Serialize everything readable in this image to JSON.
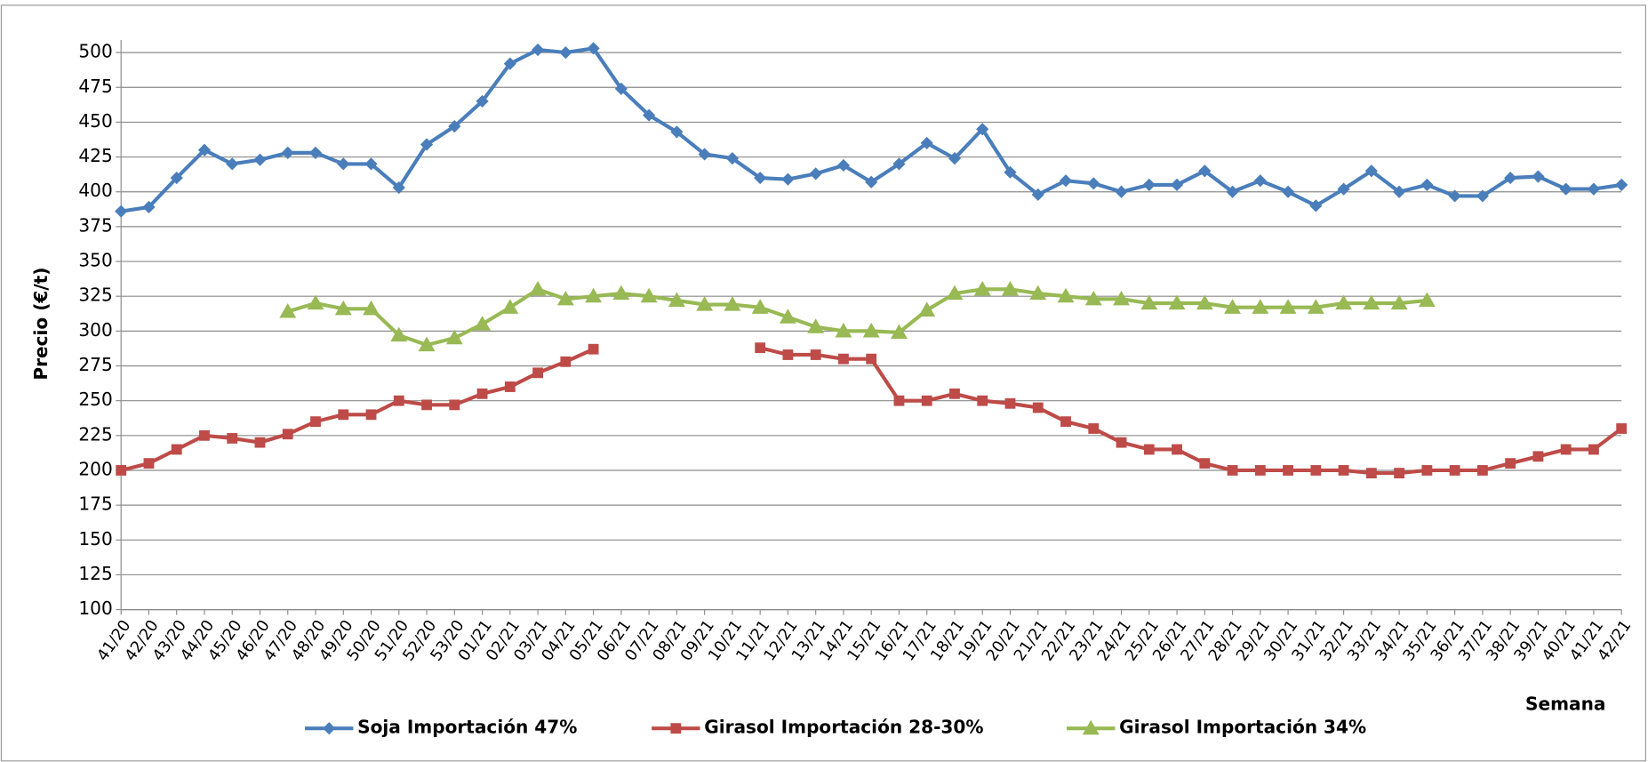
{
  "chart_data": {
    "type": "line",
    "y_label": "Precio (€/t)",
    "x_label": "Semana",
    "categories": [
      "41/20",
      "42/20",
      "43/20",
      "44/20",
      "45/20",
      "46/20",
      "47/20",
      "48/20",
      "49/20",
      "50/20",
      "51/20",
      "52/20",
      "53/20",
      "01/21",
      "02/21",
      "03/21",
      "04/21",
      "05/21",
      "06/21",
      "07/21",
      "08/21",
      "09/21",
      "10/21",
      "11/21",
      "12/21",
      "13/21",
      "14/21",
      "15/21",
      "16/21",
      "17/21",
      "18/21",
      "19/21",
      "20/21",
      "21/21",
      "22/21",
      "23/21",
      "24/21",
      "25/21",
      "26/21",
      "27/21",
      "28/21",
      "29/21",
      "30/21",
      "31/21",
      "32/21",
      "33/21",
      "34/21",
      "35/21",
      "36/21",
      "37/21",
      "38/21",
      "39/21",
      "40/21",
      "41/21",
      "42/21"
    ],
    "series": [
      {
        "name": "Soja Importación 47%",
        "color": "#4a7ebb",
        "marker": "diamond",
        "values": [
          386,
          389,
          410,
          430,
          420,
          423,
          428,
          428,
          420,
          420,
          403,
          434,
          447,
          465,
          492,
          502,
          500,
          503,
          474,
          455,
          443,
          427,
          424,
          410,
          409,
          413,
          419,
          407,
          420,
          435,
          424,
          445,
          414,
          398,
          408,
          406,
          400,
          405,
          405,
          415,
          400,
          408,
          400,
          390,
          402,
          415,
          400,
          405,
          397,
          397,
          410,
          411,
          402,
          402,
          405
        ]
      },
      {
        "name": "Girasol Importación 28-30%",
        "color": "#be4b48",
        "marker": "square",
        "values": [
          200,
          205,
          215,
          225,
          223,
          220,
          226,
          235,
          240,
          240,
          250,
          247,
          247,
          255,
          260,
          270,
          278,
          287,
          null,
          null,
          null,
          null,
          null,
          288,
          283,
          283,
          280,
          280,
          250,
          250,
          255,
          250,
          248,
          245,
          235,
          230,
          220,
          215,
          215,
          205,
          200,
          200,
          200,
          200,
          200,
          198,
          198,
          200,
          200,
          200,
          205,
          210,
          215,
          215,
          230
        ]
      },
      {
        "name": "Girasol Importación 34%",
        "color": "#98b954",
        "marker": "triangle",
        "values": [
          null,
          null,
          null,
          null,
          null,
          null,
          314,
          320,
          316,
          316,
          297,
          290,
          295,
          305,
          317,
          330,
          323,
          325,
          327,
          325,
          322,
          319,
          319,
          317,
          310,
          303,
          300,
          300,
          299,
          315,
          327,
          330,
          330,
          327,
          325,
          323,
          323,
          320,
          320,
          320,
          317,
          317,
          317,
          317,
          320,
          320,
          320,
          322,
          null,
          null,
          null,
          null,
          null,
          null,
          null
        ]
      }
    ],
    "ylim": [
      100,
      500
    ],
    "yticks": [
      100,
      125,
      150,
      175,
      200,
      225,
      250,
      275,
      300,
      325,
      350,
      375,
      400,
      425,
      450,
      475,
      500
    ],
    "grid": true,
    "legend": "bottom"
  }
}
